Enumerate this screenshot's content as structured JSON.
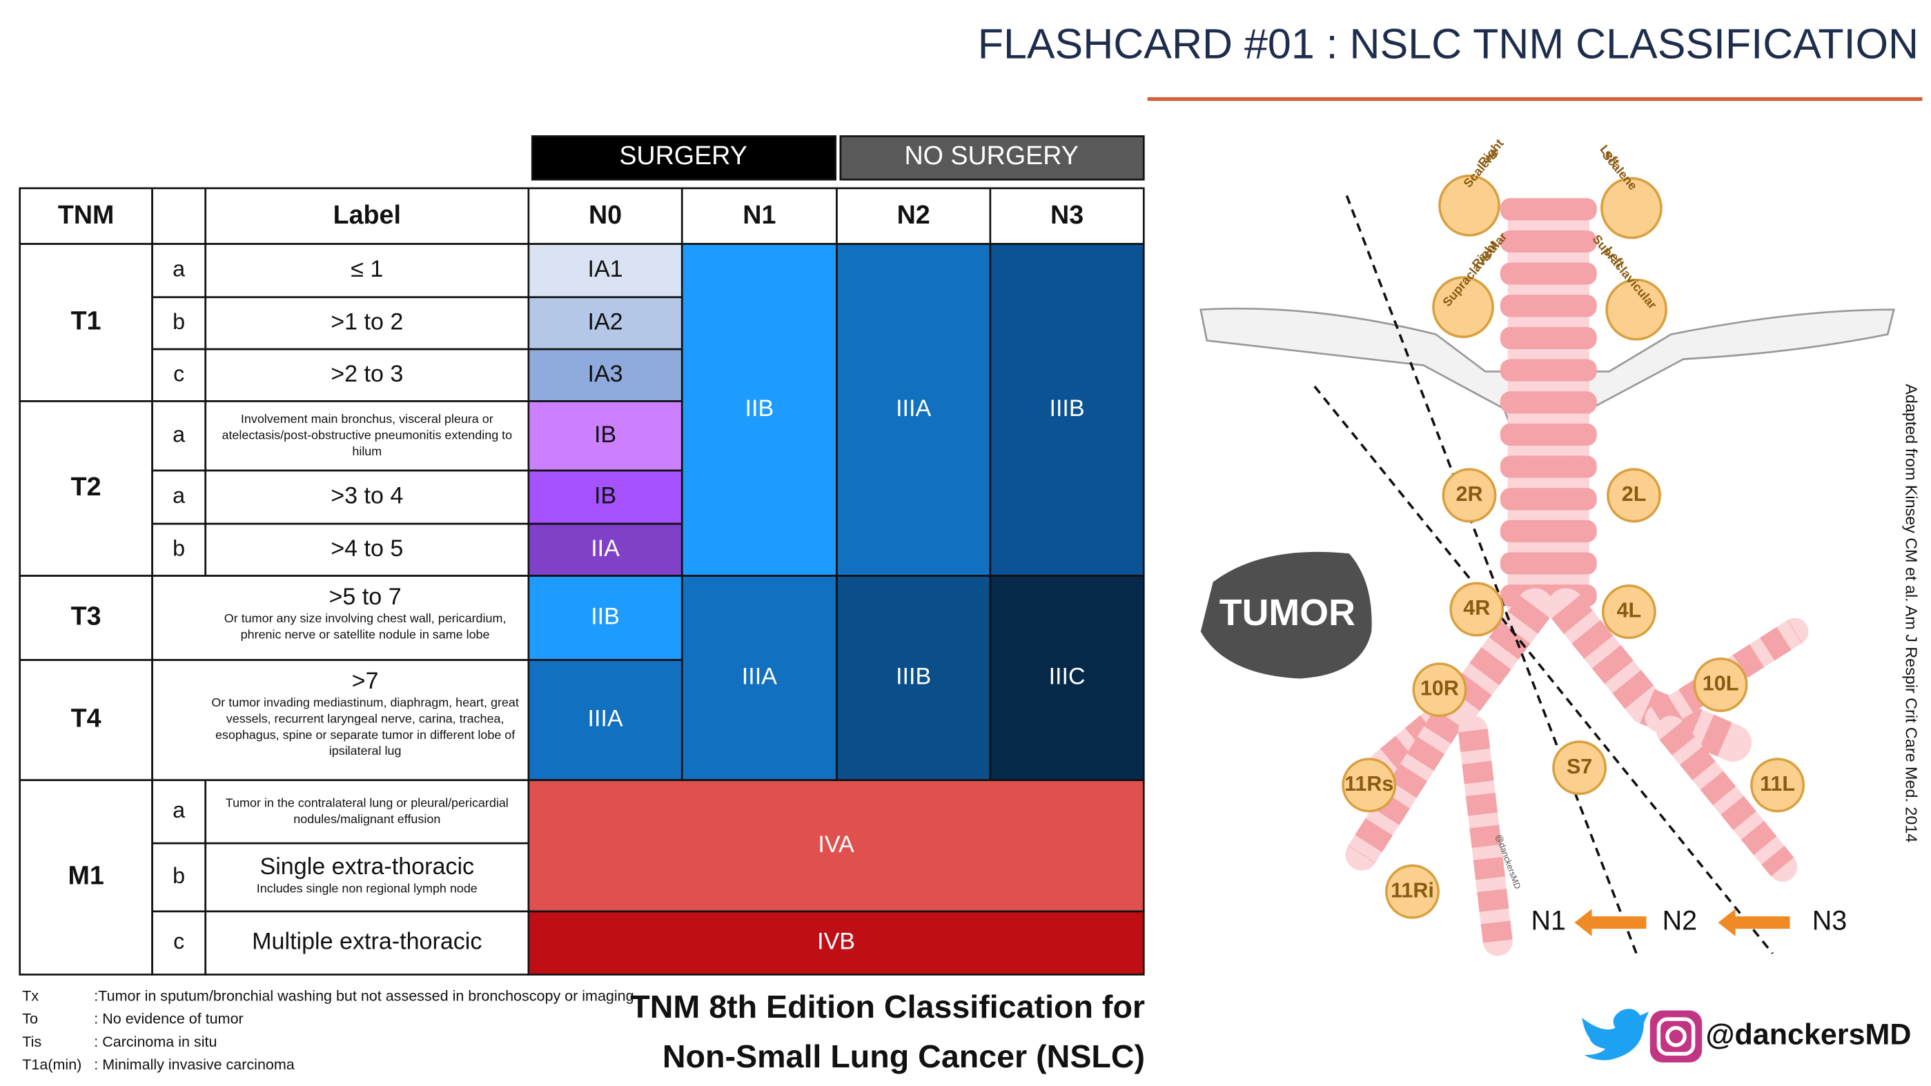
{
  "header": {
    "title": "FLASHCARD #01  : NSLC TNM CLASSIFICATION"
  },
  "table": {
    "groups": [
      "SURGERY",
      "NO SURGERY"
    ],
    "headers": [
      "TNM",
      "Label",
      "N0",
      "N1",
      "N2",
      "N3"
    ],
    "categories": [
      "T1",
      "T2",
      "T3",
      "T4",
      "M1"
    ],
    "rows": [
      {
        "sub": "a",
        "label": "≤ 1",
        "n0": "IA1"
      },
      {
        "sub": "b",
        "label": ">1 to 2",
        "n0": "IA2"
      },
      {
        "sub": "c",
        "label": ">2 to 3",
        "n0": "IA3"
      },
      {
        "sub": "a",
        "note": [
          "Involvement main bronchus, visceral pleura or",
          "atelectasis/post-obstructive pneumonitis extending to",
          "hilum"
        ],
        "n0": "IB"
      },
      {
        "sub": "a",
        "label": ">3 to 4",
        "n0": "IB"
      },
      {
        "sub": "b",
        "label": ">4 to 5",
        "n0": "IIA"
      },
      {
        "label": ">5 to 7",
        "note": [
          "Or tumor any size involving chest wall, pericardium,",
          "phrenic nerve or satellite nodule in same lobe"
        ],
        "n0": "IIB"
      },
      {
        "label": ">7",
        "note": [
          "Or tumor invading mediastinum, diaphragm, heart, great",
          "vessels, recurrent laryngeal nerve, carina, trachea,",
          "esophagus, spine or separate tumor in different lobe of",
          "ipsilateral lug"
        ],
        "n0": "IIIA"
      },
      {
        "sub": "a",
        "note": [
          "Tumor in the contralateral lung or pleural/pericardial",
          "nodules/malignant effusion"
        ]
      },
      {
        "sub": "b",
        "label": "Single extra-thoracic",
        "note": [
          "Includes single  non regional lymph node"
        ]
      },
      {
        "sub": "c",
        "label": "Multiple extra-thoracic"
      }
    ],
    "merged": {
      "t12_n1": "IIB",
      "t12_n2": "IIIA",
      "t12_n3": "IIIB",
      "t34_n1": "IIIA",
      "t34_n2": "IIIB",
      "t34_n3": "IIIC",
      "m1ab": "IVA",
      "m1c": "IVB"
    }
  },
  "legend": [
    {
      "term": "Tx",
      "desc": ":Tumor in sputum/bronchial washing but not assessed in bronchoscopy or imaging"
    },
    {
      "term": "To",
      "desc": ": No evidence of tumor"
    },
    {
      "term": "Tis",
      "desc": ": Carcinoma in situ"
    },
    {
      "term": "T1a(min)",
      "desc": ": Minimally invasive carcinoma"
    }
  ],
  "caption": [
    "TNM 8th Edition Classification for",
    "Non-Small Lung Cancer (NSLC)"
  ],
  "diagram": {
    "tumor": "TUMOR",
    "outer_nodes": [
      [
        "Right",
        "Scalene"
      ],
      [
        "Left",
        "Scalene"
      ],
      [
        "Right",
        "Supraclavicular"
      ],
      [
        "Left",
        "Supraclavicular"
      ]
    ],
    "stations": [
      "2R",
      "2L",
      "4R",
      "4L",
      "10R",
      "10L",
      "S7",
      "11Rs",
      "11L",
      "11Ri"
    ],
    "zones": [
      "N1",
      "N2",
      "N3"
    ],
    "watermark": "@danckersMD",
    "citation": "Adapted from Kinsey CM et al. Am J Respir Crit Care Med. 2014"
  },
  "footer": {
    "handle": "@danckersMD"
  }
}
